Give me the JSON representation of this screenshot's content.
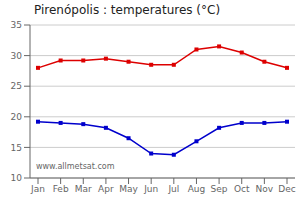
{
  "chart_data": {
    "type": "line",
    "title": "Pirenópolis : temperatures (°C)",
    "categories": [
      "Jan",
      "Feb",
      "Mar",
      "Apr",
      "May",
      "Jun",
      "Jul",
      "Aug",
      "Sep",
      "Oct",
      "Nov",
      "Dec"
    ],
    "series": [
      {
        "color": "#dd0000",
        "marker": "square",
        "values": [
          28.0,
          29.2,
          29.2,
          29.5,
          29.0,
          28.5,
          28.5,
          31.0,
          31.5,
          30.5,
          29.0,
          28.0
        ]
      },
      {
        "color": "#0000cc",
        "marker": "square",
        "values": [
          19.2,
          19.0,
          18.8,
          18.2,
          16.5,
          14.0,
          13.8,
          16.0,
          18.2,
          19.0,
          19.0,
          19.2
        ]
      }
    ],
    "ylim": [
      10,
      35
    ],
    "yticks": [
      10,
      15,
      20,
      25,
      30,
      35
    ],
    "grid": "y",
    "annotation": "www.allmetsat.com"
  }
}
